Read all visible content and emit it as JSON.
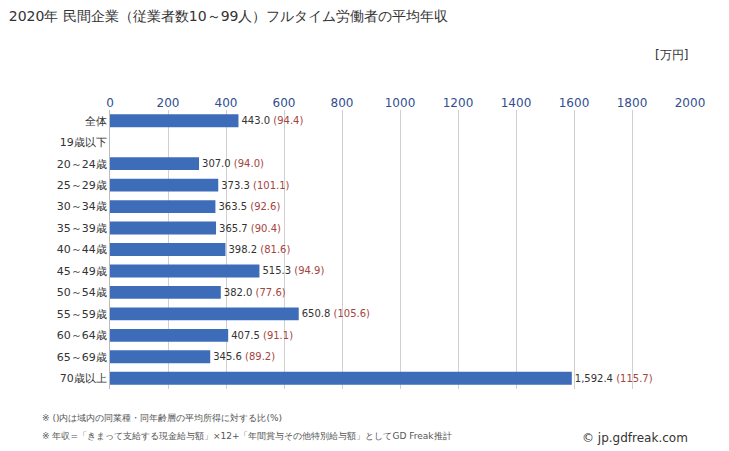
{
  "chart_data": {
    "type": "bar",
    "title": "2020年 民間企業（従業者数10～99人）フルタイム労働者の平均年収",
    "xlabel": "[万円]",
    "orientation": "horizontal",
    "categories": [
      "全体",
      "19歳以下",
      "20～24歳",
      "25～29歳",
      "30～34歳",
      "35～39歳",
      "40～44歳",
      "45～49歳",
      "50～54歳",
      "55～59歳",
      "60～64歳",
      "65～69歳",
      "70歳以上"
    ],
    "values": [
      443.0,
      null,
      307.0,
      373.3,
      363.5,
      365.7,
      398.2,
      515.3,
      382.0,
      650.8,
      407.5,
      345.6,
      1592.4
    ],
    "value_labels": [
      "443.0",
      null,
      "307.0",
      "373.3",
      "363.5",
      "365.7",
      "398.2",
      "515.3",
      "382.0",
      "650.8",
      "407.5",
      "345.6",
      "1,592.4"
    ],
    "ratio_labels": [
      "(94.4)",
      null,
      "(94.0)",
      "(101.1)",
      "(92.6)",
      "(90.4)",
      "(81.6)",
      "(94.9)",
      "(77.6)",
      "(105.6)",
      "(91.1)",
      "(89.2)",
      "(115.7)"
    ],
    "color": "#3d6cb9",
    "xlim": [
      0,
      2000
    ],
    "xticks": [
      0,
      200,
      400,
      600,
      800,
      1000,
      1200,
      1400,
      1600,
      1800,
      2000
    ],
    "grid": true,
    "data_labels": true,
    "notes": [
      "※ ()内は域内の同業種・同年齢層の平均所得に対する比(%)",
      "※ 年収=「きまって支給する現金給与額」×12+「年間賞与その他特別給与額」としてGD Freak推計"
    ],
    "source": "© jp.gdfreak.com"
  }
}
